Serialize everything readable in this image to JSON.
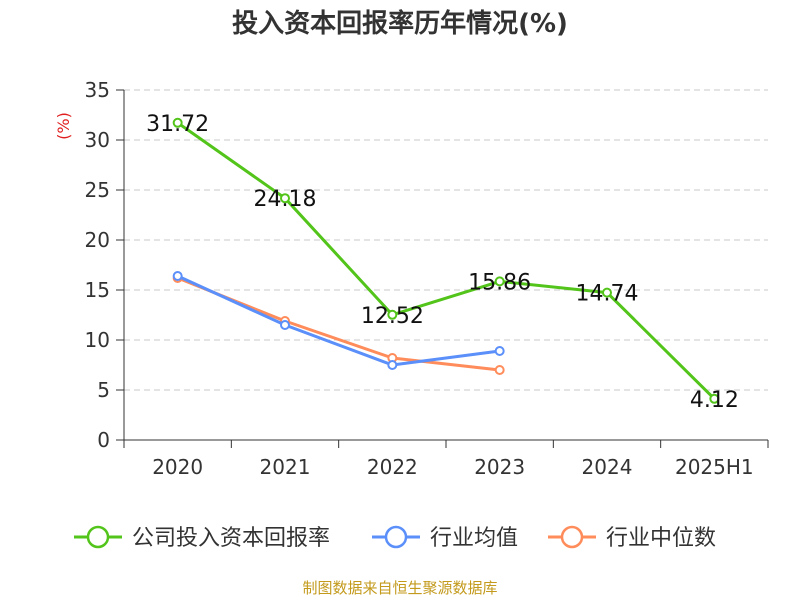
{
  "chart_data": {
    "type": "line",
    "title": "投入资本回报率历年情况(%)",
    "ylabel": "(%)",
    "xlabel": "",
    "categories": [
      "2020",
      "2021",
      "2022",
      "2023",
      "2024",
      "2025H1"
    ],
    "ylim": [
      0,
      35
    ],
    "yticks": [
      0,
      5,
      10,
      15,
      20,
      25,
      30,
      35
    ],
    "grid": true,
    "legend_position": "bottom",
    "series": [
      {
        "name": "公司投入资本回报率",
        "color": "#52c41a",
        "values": [
          31.72,
          24.18,
          12.52,
          15.86,
          14.74,
          4.12
        ],
        "labels": [
          "31.72",
          "24.18",
          "12.52",
          "15.86",
          "14.74",
          "4.12"
        ]
      },
      {
        "name": "行业均值",
        "color": "#5b8ff9",
        "values": [
          16.4,
          11.5,
          7.5,
          8.9,
          null,
          null
        ]
      },
      {
        "name": "行业中位数",
        "color": "#ff8c5a",
        "values": [
          16.2,
          11.9,
          8.2,
          7.0,
          null,
          null
        ]
      }
    ]
  },
  "source_note": "制图数据来自恒生聚源数据库"
}
